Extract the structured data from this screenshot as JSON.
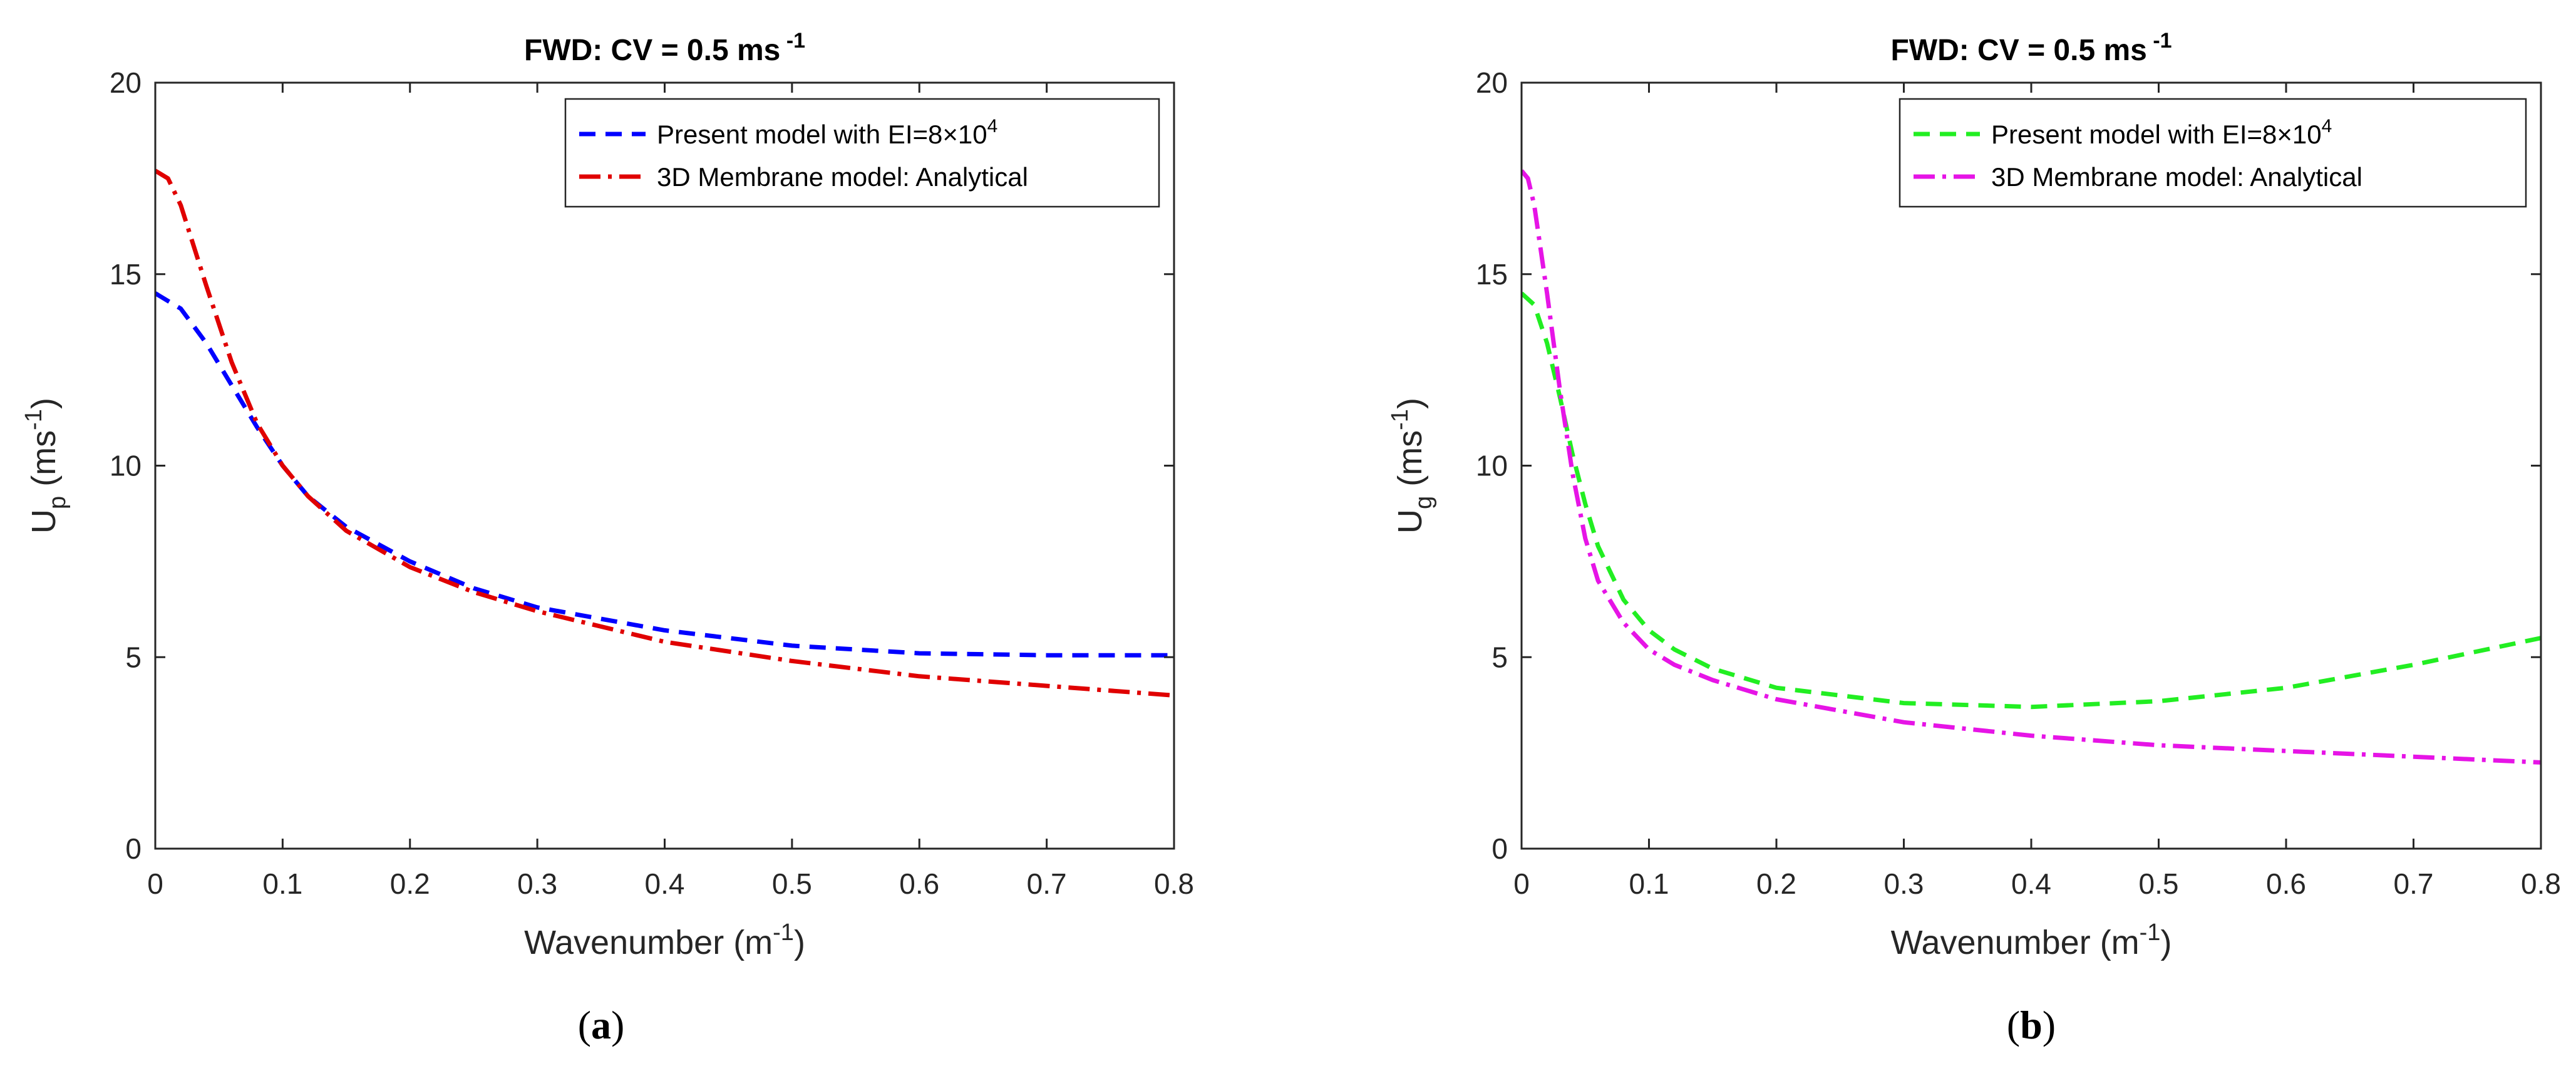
{
  "chart_data": [
    {
      "type": "line",
      "panel_label": "(a)",
      "panel_letter": "a",
      "title": "FWD: CV = 0.5 ms",
      "title_sup": "-1",
      "xlabel": "Wavenumber (m",
      "xlabel_sup": "-1",
      "xlabel_end": ")",
      "ylabel_main": "U",
      "ylabel_sub": "p",
      "ylabel_unit": " (ms",
      "ylabel_sup": "-1",
      "ylabel_end": ")",
      "xlim": [
        0,
        0.8
      ],
      "ylim": [
        0,
        20
      ],
      "xticks": [
        "0",
        "0.1",
        "0.2",
        "0.3",
        "0.4",
        "0.5",
        "0.6",
        "0.7",
        "0.8"
      ],
      "yticks": [
        "0",
        "5",
        "10",
        "15",
        "20"
      ],
      "legend_position": "top-right",
      "series": [
        {
          "name": "Present model with EI=8×10",
          "name_sup": "4",
          "color": "#0000ff",
          "style": "dashed",
          "x": [
            0,
            0.02,
            0.04,
            0.06,
            0.08,
            0.1,
            0.12,
            0.15,
            0.2,
            0.25,
            0.3,
            0.4,
            0.5,
            0.6,
            0.7,
            0.8
          ],
          "y": [
            14.5,
            14.1,
            13.2,
            12.1,
            11.0,
            10.0,
            9.2,
            8.4,
            7.5,
            6.8,
            6.3,
            5.7,
            5.3,
            5.1,
            5.05,
            5.05
          ]
        },
        {
          "name": "3D Membrane model: Analytical",
          "color": "#e00000",
          "style": "dashdot",
          "x": [
            0,
            0.01,
            0.02,
            0.04,
            0.06,
            0.08,
            0.1,
            0.12,
            0.15,
            0.2,
            0.25,
            0.3,
            0.4,
            0.5,
            0.6,
            0.7,
            0.8
          ],
          "y": [
            17.7,
            17.5,
            16.8,
            14.7,
            12.7,
            11.1,
            10.0,
            9.2,
            8.3,
            7.35,
            6.7,
            6.2,
            5.4,
            4.9,
            4.5,
            4.25,
            4.0
          ]
        }
      ]
    },
    {
      "type": "line",
      "panel_label": "(b)",
      "panel_letter": "b",
      "title": "FWD: CV = 0.5 ms",
      "title_sup": "-1",
      "xlabel": "Wavenumber (m",
      "xlabel_sup": "-1",
      "xlabel_end": ")",
      "ylabel_main": "U",
      "ylabel_sub": "g",
      "ylabel_unit": " (ms",
      "ylabel_sup": "-1",
      "ylabel_end": ")",
      "xlim": [
        0,
        0.8
      ],
      "ylim": [
        0,
        20
      ],
      "xticks": [
        "0",
        "0.1",
        "0.2",
        "0.3",
        "0.4",
        "0.5",
        "0.6",
        "0.7",
        "0.8"
      ],
      "yticks": [
        "0",
        "5",
        "10",
        "15",
        "20"
      ],
      "legend_position": "top-right",
      "series": [
        {
          "name": "Present model with EI=8×10",
          "name_sup": "4",
          "color": "#22ee22",
          "style": "dashed",
          "x": [
            0,
            0.01,
            0.02,
            0.03,
            0.04,
            0.05,
            0.06,
            0.08,
            0.1,
            0.12,
            0.15,
            0.2,
            0.3,
            0.4,
            0.5,
            0.6,
            0.7,
            0.8
          ],
          "y": [
            14.5,
            14.2,
            13.2,
            11.8,
            10.3,
            9.0,
            7.9,
            6.5,
            5.7,
            5.2,
            4.7,
            4.2,
            3.8,
            3.7,
            3.85,
            4.2,
            4.8,
            5.5
          ],
          "points_only": false
        },
        {
          "name": "3D Membrane model: Analytical",
          "color": "#e614e6",
          "style": "dashdot",
          "x": [
            0,
            0.005,
            0.01,
            0.02,
            0.03,
            0.04,
            0.05,
            0.06,
            0.08,
            0.1,
            0.12,
            0.15,
            0.2,
            0.3,
            0.4,
            0.5,
            0.6,
            0.7,
            0.8
          ],
          "y": [
            17.7,
            17.5,
            16.8,
            14.5,
            12.0,
            9.8,
            8.1,
            7.0,
            5.9,
            5.2,
            4.8,
            4.4,
            3.9,
            3.3,
            2.95,
            2.7,
            2.55,
            2.4,
            2.25
          ]
        }
      ]
    }
  ]
}
